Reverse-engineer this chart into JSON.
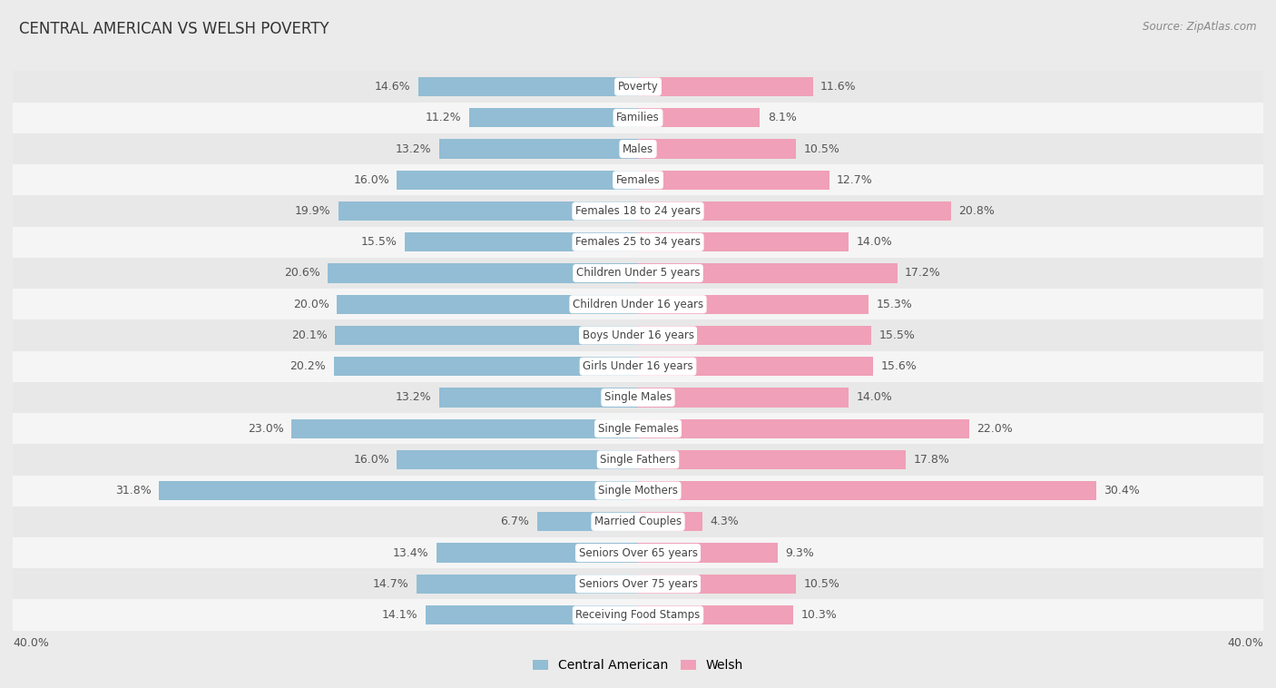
{
  "title": "CENTRAL AMERICAN VS WELSH POVERTY",
  "source": "Source: ZipAtlas.com",
  "categories": [
    "Poverty",
    "Families",
    "Males",
    "Females",
    "Females 18 to 24 years",
    "Females 25 to 34 years",
    "Children Under 5 years",
    "Children Under 16 years",
    "Boys Under 16 years",
    "Girls Under 16 years",
    "Single Males",
    "Single Females",
    "Single Fathers",
    "Single Mothers",
    "Married Couples",
    "Seniors Over 65 years",
    "Seniors Over 75 years",
    "Receiving Food Stamps"
  ],
  "central_american": [
    14.6,
    11.2,
    13.2,
    16.0,
    19.9,
    15.5,
    20.6,
    20.0,
    20.1,
    20.2,
    13.2,
    23.0,
    16.0,
    31.8,
    6.7,
    13.4,
    14.7,
    14.1
  ],
  "welsh": [
    11.6,
    8.1,
    10.5,
    12.7,
    20.8,
    14.0,
    17.2,
    15.3,
    15.5,
    15.6,
    14.0,
    22.0,
    17.8,
    30.4,
    4.3,
    9.3,
    10.5,
    10.3
  ],
  "central_american_color": "#92bdd4",
  "welsh_color": "#f0a0b8",
  "row_color_odd": "#e8e8e8",
  "row_color_even": "#f5f5f5",
  "background_color": "#ebebeb",
  "x_max": 40.0,
  "legend_central": "Central American",
  "legend_welsh": "Welsh"
}
